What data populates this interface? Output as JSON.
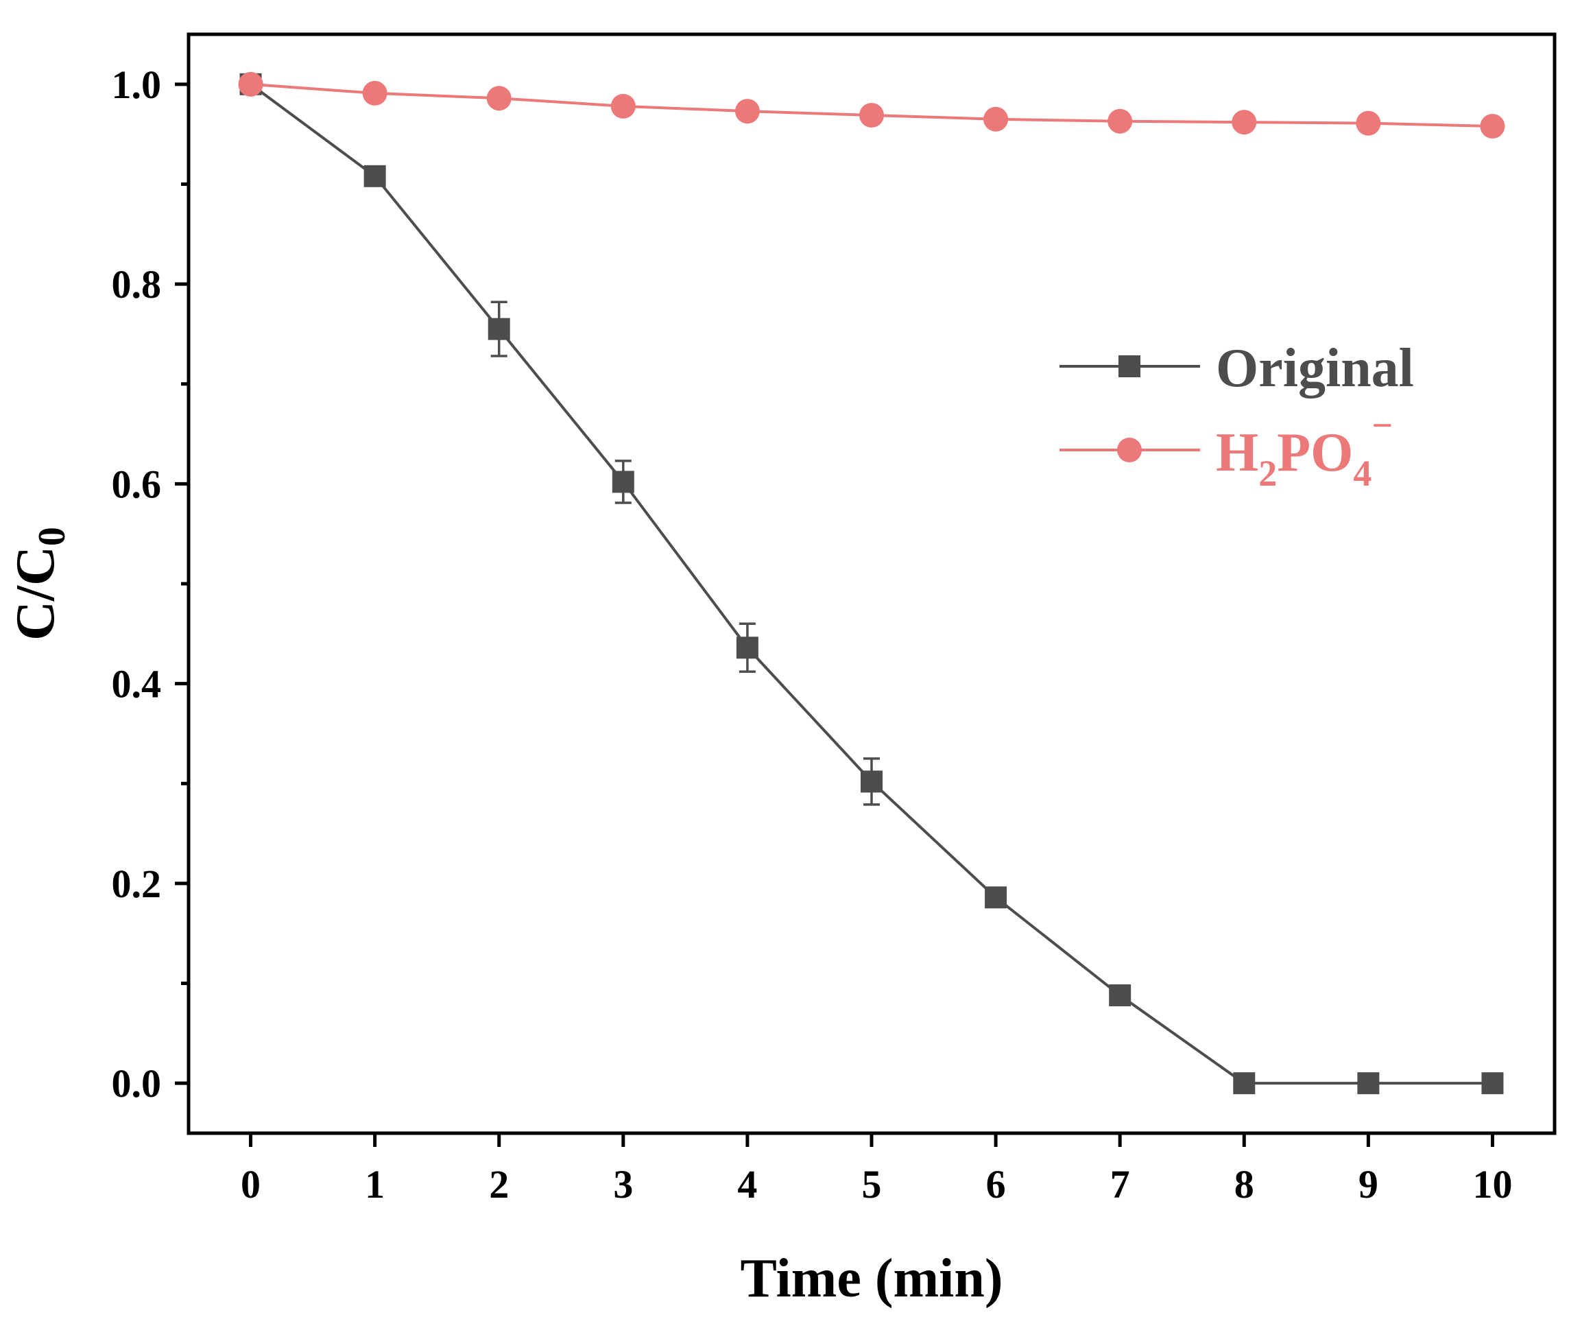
{
  "chart_data": {
    "type": "line",
    "x": [
      0,
      1,
      2,
      3,
      4,
      5,
      6,
      7,
      8,
      9,
      10
    ],
    "xticks": [
      "0",
      "1",
      "2",
      "3",
      "4",
      "5",
      "6",
      "7",
      "8",
      "9",
      "10"
    ],
    "yticks": [
      "0.0",
      "0.2",
      "0.4",
      "0.6",
      "0.8",
      "1.0"
    ],
    "xlim": [
      -0.5,
      10.5
    ],
    "ylim": [
      -0.05,
      1.05
    ],
    "xlabel": "Time (min)",
    "ylabel": "C/C",
    "ylabel_sub": "0",
    "grid": false,
    "legend_position": "upper-right",
    "series": [
      {
        "name": "Original",
        "color": "#4d4d4d",
        "marker": "square",
        "values": [
          1.0,
          0.908,
          0.755,
          0.602,
          0.436,
          0.302,
          0.186,
          0.088,
          0.0,
          0.0,
          0.0
        ],
        "error": [
          0.0,
          0.008,
          0.027,
          0.021,
          0.024,
          0.023,
          0.008,
          0.008,
          0.0,
          0.0,
          0.0
        ]
      },
      {
        "name": "H",
        "name_parts": {
          "base": "H",
          "sub1": "2",
          "mid": "PO",
          "sub2": "4",
          "sup": "−"
        },
        "color": "#ec7878",
        "marker": "circle",
        "values": [
          1.0,
          0.991,
          0.986,
          0.978,
          0.973,
          0.969,
          0.965,
          0.963,
          0.962,
          0.961,
          0.958
        ]
      }
    ]
  }
}
